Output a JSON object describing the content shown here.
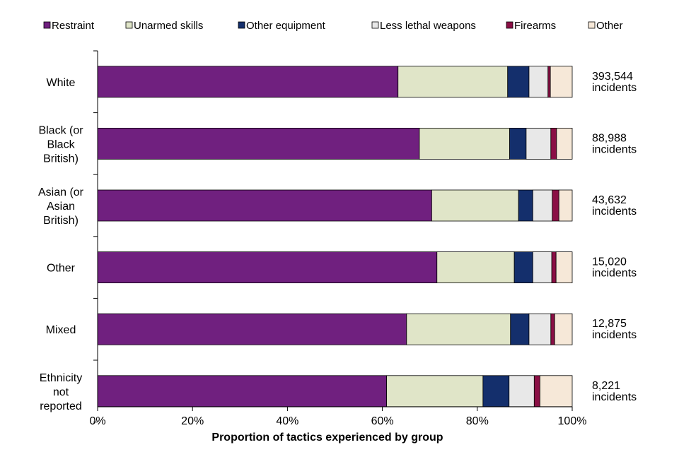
{
  "chart_data": {
    "type": "bar",
    "orientation": "horizontal",
    "stacked": "percent",
    "title": "",
    "xlabel": "Proportion of tactics experienced by group",
    "ylabel": "",
    "xlim": [
      0,
      100
    ],
    "x_ticks": [
      "0%",
      "20%",
      "40%",
      "60%",
      "80%",
      "100%"
    ],
    "grid": false,
    "legend_position": "top",
    "categories": [
      [
        "White"
      ],
      [
        "Black (or",
        "Black",
        "British)"
      ],
      [
        "Asian (or",
        "Asian",
        "British)"
      ],
      [
        "Other"
      ],
      [
        "Mixed"
      ],
      [
        "Ethnicity",
        "not",
        "reported"
      ]
    ],
    "series": [
      {
        "name": "Restraint",
        "color": "#70207f",
        "values": [
          63.3,
          67.8,
          70.4,
          71.5,
          65.1,
          60.9
        ]
      },
      {
        "name": "Unarmed skills",
        "color": "#e0e5c8",
        "values": [
          23.1,
          19.0,
          18.3,
          16.3,
          21.9,
          20.3
        ]
      },
      {
        "name": "Other equipment",
        "color": "#142f6c",
        "values": [
          4.5,
          3.5,
          3.0,
          3.9,
          3.9,
          5.5
        ]
      },
      {
        "name": "Less lethal weapons",
        "color": "#e8e8e8",
        "values": [
          4.0,
          5.2,
          4.1,
          4.0,
          4.6,
          5.3
        ]
      },
      {
        "name": "Firearms",
        "color": "#8a0f45",
        "values": [
          0.5,
          1.2,
          1.4,
          0.9,
          0.8,
          1.2
        ]
      },
      {
        "name": "Other",
        "color": "#f6e8d8",
        "values": [
          4.6,
          3.3,
          2.8,
          3.4,
          3.7,
          6.8
        ]
      }
    ],
    "annotations": [
      {
        "count": "393,544",
        "unit": "incidents"
      },
      {
        "count": "88,988",
        "unit": "incidents"
      },
      {
        "count": "43,632",
        "unit": "incidents"
      },
      {
        "count": "15,020",
        "unit": "incidents"
      },
      {
        "count": "12,875",
        "unit": "incidents"
      },
      {
        "count": "8,221",
        "unit": "incidents"
      }
    ]
  }
}
